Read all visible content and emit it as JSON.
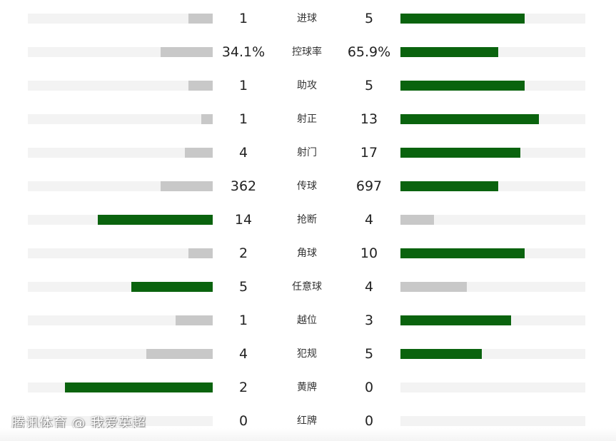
{
  "chart_data": {
    "type": "bar",
    "categories": [
      "进球",
      "控球率",
      "助攻",
      "射正",
      "射门",
      "传球",
      "抢断",
      "角球",
      "任意球",
      "越位",
      "犯规",
      "黄牌",
      "红牌"
    ],
    "series": [
      {
        "display": [
          "1",
          "34.1%",
          "1",
          "1",
          "4",
          "362",
          "14",
          "2",
          "5",
          "1",
          "4",
          "2",
          "0"
        ],
        "values": [
          1,
          34.1,
          1,
          1,
          4,
          362,
          14,
          2,
          5,
          1,
          4,
          2,
          0
        ],
        "bar_fraction": [
          0.13,
          0.28,
          0.13,
          0.06,
          0.15,
          0.28,
          0.62,
          0.13,
          0.44,
          0.2,
          0.36,
          0.8,
          0
        ]
      },
      {
        "display": [
          "5",
          "65.9%",
          "5",
          "13",
          "17",
          "697",
          "4",
          "10",
          "4",
          "3",
          "5",
          "0",
          "0"
        ],
        "values": [
          5,
          65.9,
          5,
          13,
          17,
          697,
          4,
          10,
          4,
          3,
          5,
          0,
          0
        ],
        "bar_fraction": [
          0.67,
          0.53,
          0.67,
          0.75,
          0.65,
          0.53,
          0.18,
          0.67,
          0.36,
          0.6,
          0.44,
          0,
          0
        ]
      }
    ]
  },
  "watermark": "腾讯体育 @ 我爱英超",
  "colors": {
    "leader": "#0a630e",
    "trailer": "#c8c8c8",
    "track": "#f3f3f3"
  }
}
